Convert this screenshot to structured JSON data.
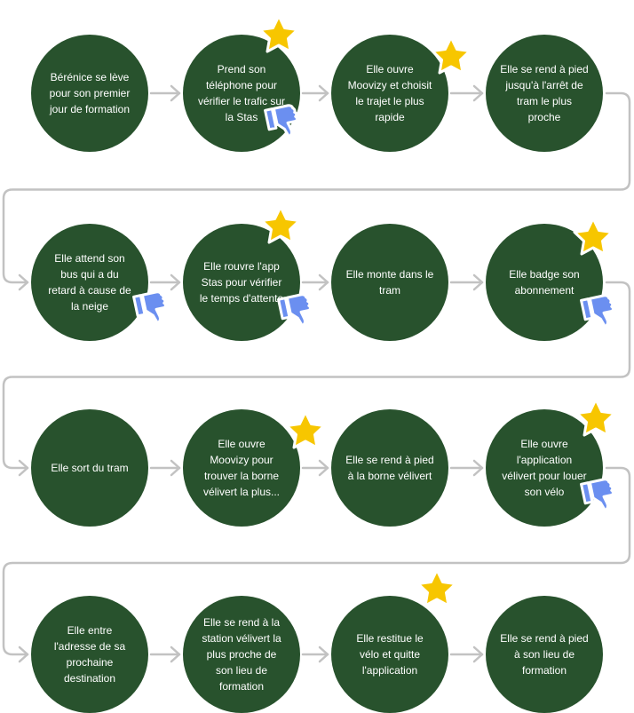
{
  "steps": [
    {
      "label": "Bérénice se lève pour son premier jour de formation",
      "icons": []
    },
    {
      "label": "Prend son téléphone pour vérifier le trafic sur la Stas",
      "icons": [
        "star-icon",
        "thumbs-down-icon"
      ]
    },
    {
      "label": "Elle ouvre Moovizy et choisit le trajet le plus rapide",
      "icons": [
        "star-icon"
      ]
    },
    {
      "label": "Elle se rend à pied jusqu'à l'arrêt de tram le plus proche",
      "icons": []
    },
    {
      "label": "Elle attend son bus qui a du retard à cause de la neige",
      "icons": [
        "thumbs-down-icon"
      ]
    },
    {
      "label": "Elle rouvre l'app Stas pour vérifier le temps d'attente",
      "icons": [
        "star-icon",
        "thumbs-down-icon"
      ]
    },
    {
      "label": "Elle monte dans le tram",
      "icons": []
    },
    {
      "label": "Elle badge son abonnement",
      "icons": [
        "star-icon",
        "thumbs-down-icon"
      ]
    },
    {
      "label": "Elle sort du tram",
      "icons": []
    },
    {
      "label": "Elle ouvre Moovizy pour trouver la borne vélivert la plus...",
      "icons": [
        "star-icon"
      ]
    },
    {
      "label": "Elle se rend à pied à la borne vélivert",
      "icons": []
    },
    {
      "label": "Elle ouvre l'application vélivert pour louer son vélo",
      "icons": [
        "star-icon",
        "thumbs-down-icon"
      ]
    },
    {
      "label": "Elle entre l'adresse de sa prochaine destination",
      "icons": []
    },
    {
      "label": "Elle se rend à la station vélivert la plus proche de son lieu de formation",
      "icons": []
    },
    {
      "label": "Elle restitue le vélo et quitte l'application",
      "icons": [
        "star-icon"
      ]
    },
    {
      "label": "Elle se rend à pied à son lieu de formation",
      "icons": []
    }
  ],
  "colors": {
    "circle": "#28522d",
    "text": "#ffffff",
    "connector": "#c2c2c2",
    "star": "#f7c600",
    "thumb": "#6b8ff0"
  }
}
